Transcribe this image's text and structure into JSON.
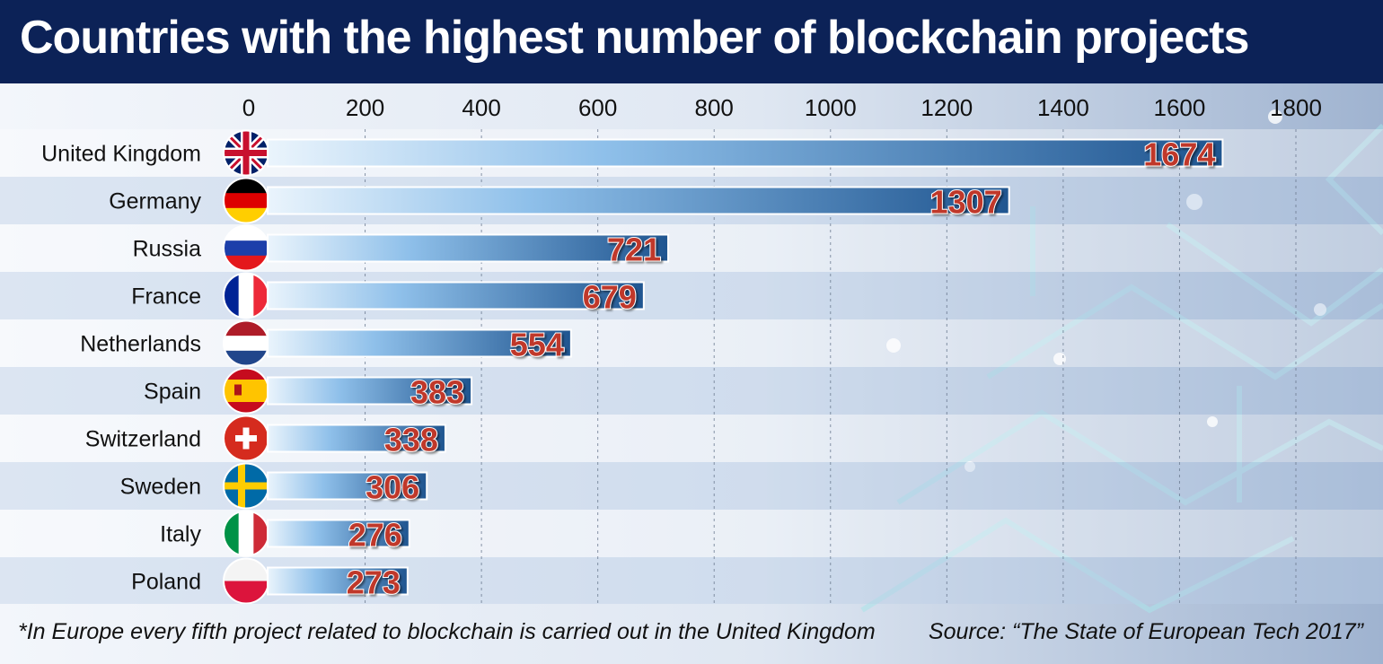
{
  "title": "Countries with the highest number of blockchain projects",
  "footnote": "*In Europe every fifth project related to blockchain is carried out in the United Kingdom",
  "source": "Source: “The State of European Tech 2017”",
  "colors": {
    "header": "#0c2257",
    "bar_dark": "#1f5590",
    "bar_light": "#eaf4fc",
    "value_text": "#c0392b"
  },
  "chart_data": {
    "type": "bar",
    "orientation": "horizontal",
    "categories": [
      "United Kingdom",
      "Germany",
      "Russia",
      "France",
      "Netherlands",
      "Spain",
      "Switzerland",
      "Sweden",
      "Italy",
      "Poland"
    ],
    "values": [
      1674,
      1307,
      721,
      679,
      554,
      383,
      338,
      306,
      276,
      273
    ],
    "flags": [
      "uk-flag-icon",
      "germany-flag-icon",
      "russia-flag-icon",
      "france-flag-icon",
      "netherlands-flag-icon",
      "spain-flag-icon",
      "switzerland-flag-icon",
      "sweden-flag-icon",
      "italy-flag-icon",
      "poland-flag-icon"
    ],
    "xticks": [
      "0",
      "200",
      "400",
      "600",
      "800",
      "1000",
      "1200",
      "1400",
      "1600",
      "1800"
    ],
    "xlim": [
      0,
      1800
    ],
    "grid": true,
    "xaxis_position": "top"
  }
}
